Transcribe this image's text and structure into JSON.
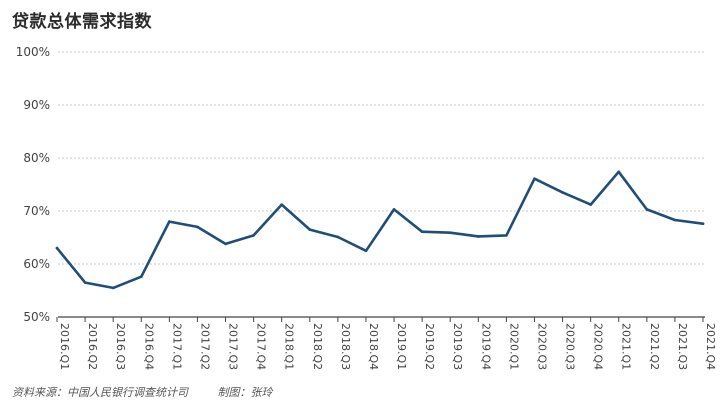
{
  "chart_data": {
    "type": "line",
    "title": "贷款总体需求指数",
    "categories": [
      "2016.Q1",
      "2016.Q2",
      "2016.Q3",
      "2016.Q4",
      "2017.Q1",
      "2017.Q2",
      "2017.Q3",
      "2017.Q4",
      "2018.Q1",
      "2018.Q2",
      "2018.Q3",
      "2018.Q4",
      "2019.Q1",
      "2019.Q2",
      "2019.Q3",
      "2019.Q4",
      "2020.Q1",
      "2020.Q3",
      "2020.Q3",
      "2020.Q4",
      "2021.Q1",
      "2021.Q2",
      "2021.Q3",
      "2021.Q4"
    ],
    "series": [
      {
        "values": [
          63.0,
          56.5,
          55.5,
          57.6,
          68.0,
          67.0,
          63.8,
          65.4,
          71.2,
          66.5,
          65.1,
          62.5,
          70.3,
          66.1,
          65.9,
          65.2,
          65.4,
          76.1,
          73.5,
          71.2,
          77.4,
          70.3,
          68.3,
          67.6
        ]
      }
    ],
    "yticks": [
      "50%",
      "60%",
      "70%",
      "80%",
      "90%",
      "100%"
    ],
    "ylim": [
      50,
      100
    ],
    "grid": true,
    "line_color": "#1f4e79"
  },
  "footer": {
    "source": "资料来源：中国人民银行调查统计司",
    "author": "制图：张玲"
  }
}
